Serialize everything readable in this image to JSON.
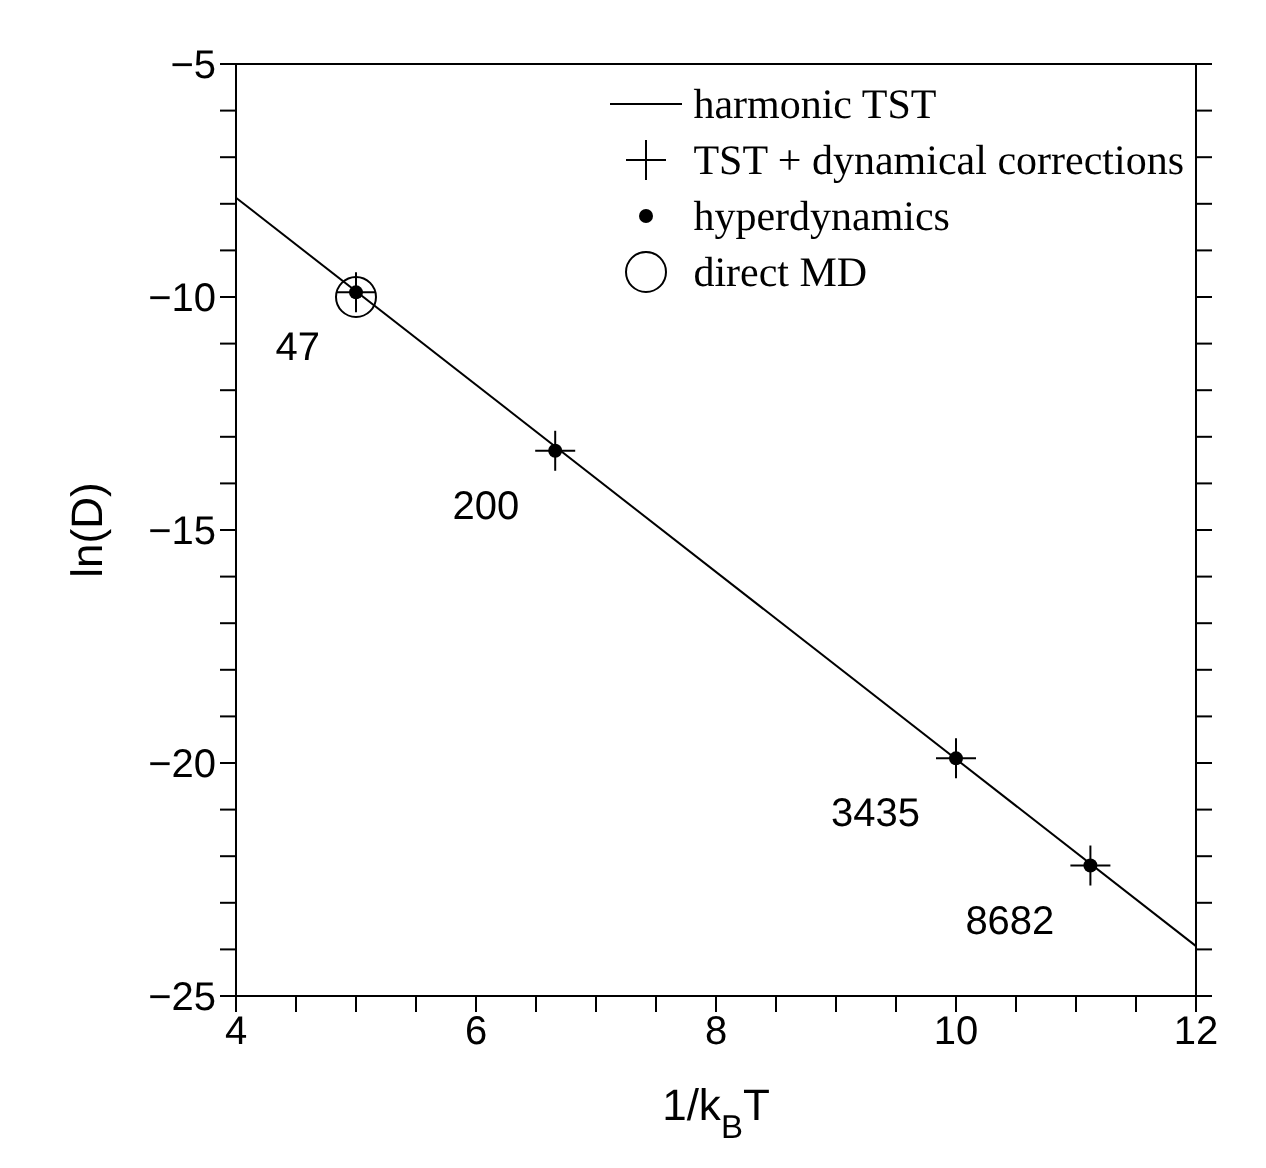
{
  "chart_data": {
    "type": "line",
    "xlabel": "1/k$_{B}$T",
    "ylabel": "ln(D)",
    "xlim": [
      4,
      12
    ],
    "ylim": [
      -25,
      -5
    ],
    "xticks": [
      4,
      {
        "value": 4.5,
        "label": null
      },
      {
        "value": 5,
        "label": null
      },
      {
        "value": 5.5,
        "label": null
      },
      6,
      {
        "value": 6.5,
        "label": null
      },
      {
        "value": 7,
        "label": null
      },
      {
        "value": 7.5,
        "label": null
      },
      8,
      {
        "value": 8.5,
        "label": null
      },
      {
        "value": 9,
        "label": null
      },
      {
        "value": 9.5,
        "label": null
      },
      10,
      {
        "value": 10.5,
        "label": null
      },
      {
        "value": 11,
        "label": null
      },
      {
        "value": 11.5,
        "label": null
      },
      12
    ],
    "yticks": [
      -25,
      {
        "value": -24,
        "label": null
      },
      {
        "value": -23,
        "label": null
      },
      {
        "value": -22,
        "label": null
      },
      {
        "value": -21,
        "label": null
      },
      -20,
      {
        "value": -19,
        "label": null
      },
      {
        "value": -18,
        "label": null
      },
      {
        "value": -17,
        "label": null
      },
      {
        "value": -16,
        "label": null
      },
      -15,
      {
        "value": -14,
        "label": null
      },
      {
        "value": -13,
        "label": null
      },
      {
        "value": -12,
        "label": null
      },
      {
        "value": -11,
        "label": null
      },
      -10,
      {
        "value": -9,
        "label": null
      },
      {
        "value": -8,
        "label": null
      },
      {
        "value": -7,
        "label": null
      },
      {
        "value": -6,
        "label": null
      },
      -5
    ],
    "legend": "top right",
    "series": [
      {
        "name": "harmonic TST",
        "color": "#000000",
        "x": [
          4,
          12
        ],
        "values": [
          -7.87,
          -23.93
        ],
        "marker": "none",
        "line_style": "solid"
      },
      {
        "name": "TST + dynamical corrections",
        "type": "scatter",
        "color": "#000000",
        "x": [
          5.0,
          6.66,
          10.0,
          11.12
        ],
        "values": [
          -9.9,
          -13.3,
          -19.9,
          -22.2
        ],
        "marker": "cross"
      },
      {
        "name": "hyperdynamics",
        "type": "scatter",
        "color": "#000000",
        "x": [
          5.0,
          6.66,
          10.0,
          11.12
        ],
        "values": [
          -9.9,
          -13.3,
          -19.9,
          -22.2
        ],
        "marker": "circle"
      },
      {
        "name": "direct MD",
        "type": "bubble",
        "color": "#000000",
        "x": [
          5.0
        ],
        "values": [
          -10.0
        ],
        "sizes": [
          1
        ]
      }
    ],
    "annotations": [
      {
        "text": "47",
        "x": 5.0,
        "y": -9.9
      },
      {
        "text": "200",
        "x": 6.66,
        "y": -13.3
      },
      {
        "text": "3435",
        "x": 10.0,
        "y": -19.9
      },
      {
        "text": "8682",
        "x": 11.12,
        "y": -22.2
      }
    ]
  }
}
